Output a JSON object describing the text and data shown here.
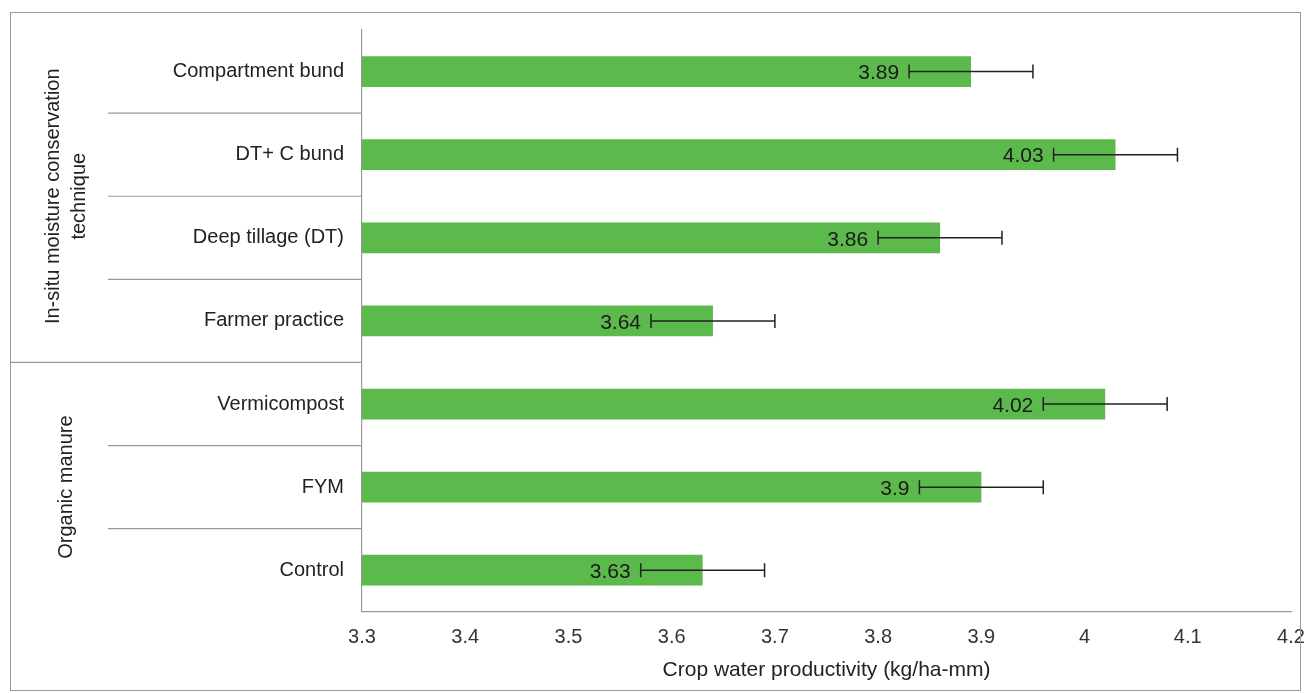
{
  "chart_data": {
    "type": "bar",
    "orientation": "horizontal",
    "xlabel": "Crop water productivity (kg/ha-mm)",
    "categories": [
      "Compartment bund",
      "DT+ C bund",
      "Deep tillage (DT)",
      "Farmer practice",
      "Vermicompost",
      "FYM",
      "Control"
    ],
    "values": [
      3.89,
      4.03,
      3.86,
      3.64,
      4.02,
      3.9,
      3.63
    ],
    "errors": [
      0.06,
      0.06,
      0.06,
      0.06,
      0.06,
      0.06,
      0.06
    ],
    "color": "#5cb94c",
    "data_labels": true,
    "xlim": [
      3.3,
      4.2
    ],
    "xticks": [
      3.3,
      3.4,
      3.5,
      3.6,
      3.7,
      3.8,
      3.9,
      4,
      4.1,
      4.2
    ],
    "annotations": [
      "In-situ moisture conservation technique",
      "Organic manure"
    ],
    "grid": false,
    "legend": false
  }
}
